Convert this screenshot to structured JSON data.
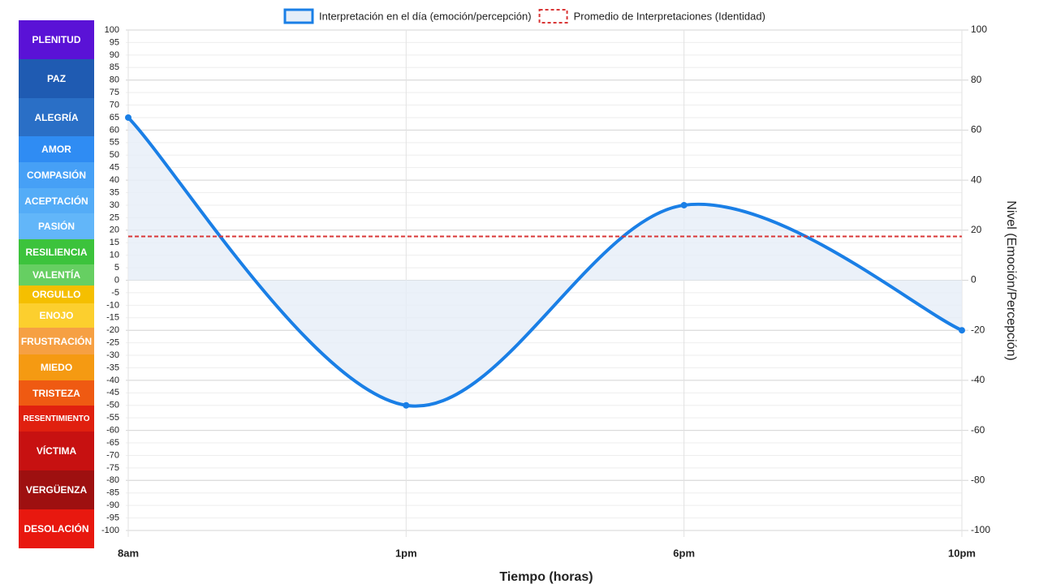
{
  "chart_data": {
    "type": "line",
    "x_label": "Tiempo (horas)",
    "y2_label": "Nivel (Emoción/Percepción)",
    "categories": [
      "8am",
      "1pm",
      "6pm",
      "10pm"
    ],
    "series": [
      {
        "name": "Interpretación en el día (emoción/percepción)",
        "color": "#1a7fe6",
        "fill": "#e6eef8",
        "values": [
          65,
          -50,
          30,
          -20
        ]
      },
      {
        "name": "Promedio de Interpretaciones (Identidad)",
        "color": "#d93636",
        "dashed": true,
        "values": [
          17.5,
          17.5,
          17.5,
          17.5
        ]
      }
    ],
    "ylim": [
      -100,
      100
    ],
    "yticks": [
      -100,
      -95,
      -90,
      -85,
      -80,
      -75,
      -70,
      -65,
      -60,
      -55,
      -50,
      -45,
      -40,
      -35,
      -30,
      -25,
      -20,
      -15,
      -10,
      -5,
      0,
      5,
      10,
      15,
      20,
      25,
      30,
      35,
      40,
      45,
      50,
      55,
      60,
      65,
      70,
      75,
      80,
      85,
      90,
      95,
      100
    ],
    "y2lim": [
      -100,
      100
    ],
    "y2ticks": [
      -100,
      -80,
      -60,
      -40,
      -20,
      0,
      20,
      40,
      60,
      80,
      100
    ],
    "grid": true,
    "legend": "top",
    "bands": [
      {
        "label": "PLENITUD",
        "color": "#5a12d6"
      },
      {
        "label": "PAZ",
        "color": "#1f5bb2"
      },
      {
        "label": "ALEGRÍA",
        "color": "#2a6fc6"
      },
      {
        "label": "AMOR",
        "color": "#2f8cf3"
      },
      {
        "label": "COMPASIÓN",
        "color": "#46a0f6"
      },
      {
        "label": "ACEPTACIÓN",
        "color": "#54acf7"
      },
      {
        "label": "PASIÓN",
        "color": "#62b6f9"
      },
      {
        "label": "RESILIENCIA",
        "color": "#3cc33c"
      },
      {
        "label": "VALENTÍA",
        "color": "#66cf62"
      },
      {
        "label": "ORGULLO",
        "color": "#f5bf00"
      },
      {
        "label": "ENOJO",
        "color": "#fccf2e"
      },
      {
        "label": "FRUSTRACIÓN",
        "color": "#f6a043"
      },
      {
        "label": "MIEDO",
        "color": "#f59a12"
      },
      {
        "label": "TRISTEZA",
        "color": "#ef5a12"
      },
      {
        "label": "RESENTIMIENTO",
        "color": "#e0200f"
      },
      {
        "label": "VÍCTIMA",
        "color": "#c71111"
      },
      {
        "label": "VERGÜENZA",
        "color": "#9e1010"
      },
      {
        "label": "DESOLACIÓN",
        "color": "#e8180f"
      }
    ]
  }
}
